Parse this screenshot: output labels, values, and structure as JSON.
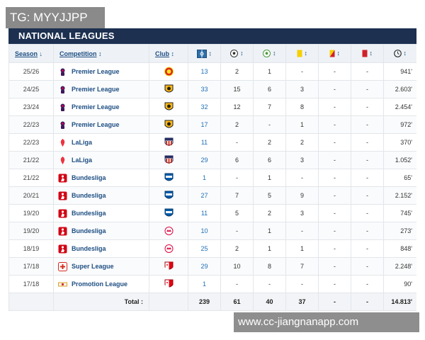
{
  "watermarks": {
    "top": "TG: MYYJJPP",
    "bottom": "www.cc-jiangnanapp.com"
  },
  "panel": {
    "title": "NATIONAL LEAGUES"
  },
  "columns": {
    "season": "Season",
    "season_arrow": "↓",
    "competition": "Competition",
    "competition_arrow": "↕",
    "club": "Club",
    "club_arrow": "↕",
    "sort_arrow": "↕"
  },
  "icons": {
    "apps": "appearances-icon",
    "goals": "goals-icon",
    "assists": "assists-icon",
    "yellow": "yellow-card-icon",
    "yellowred": "yellow-red-card-icon",
    "red": "red-card-icon",
    "minutes": "minutes-clock-icon"
  },
  "colors": {
    "header_bg": "#1d3050",
    "link": "#1d4e83",
    "apps": "#1d6fb8"
  },
  "rows": [
    {
      "season": "25/26",
      "competition": "Premier League",
      "club": "manchester-united-crest",
      "apps": "13",
      "goals": "2",
      "assists": "1",
      "yellow": "-",
      "yellowred": "-",
      "red": "-",
      "minutes": "941'"
    },
    {
      "season": "24/25",
      "competition": "Premier League",
      "club": "wolves-crest",
      "apps": "33",
      "goals": "15",
      "assists": "6",
      "yellow": "3",
      "yellowred": "-",
      "red": "-",
      "minutes": "2.603'"
    },
    {
      "season": "23/24",
      "competition": "Premier League",
      "club": "wolves-crest",
      "apps": "32",
      "goals": "12",
      "assists": "7",
      "yellow": "8",
      "yellowred": "-",
      "red": "-",
      "minutes": "2.454'"
    },
    {
      "season": "22/23",
      "competition": "Premier League",
      "club": "wolves-crest",
      "apps": "17",
      "goals": "2",
      "assists": "-",
      "yellow": "1",
      "yellowred": "-",
      "red": "-",
      "minutes": "972'"
    },
    {
      "season": "22/23",
      "competition": "LaLiga",
      "club": "atletico-madrid-crest",
      "apps": "11",
      "goals": "-",
      "assists": "2",
      "yellow": "2",
      "yellowred": "-",
      "red": "-",
      "minutes": "370'"
    },
    {
      "season": "21/22",
      "competition": "LaLiga",
      "club": "atletico-madrid-crest",
      "apps": "29",
      "goals": "6",
      "assists": "6",
      "yellow": "3",
      "yellowred": "-",
      "red": "-",
      "minutes": "1.052'"
    },
    {
      "season": "21/22",
      "competition": "Bundesliga",
      "club": "hertha-bsc-crest",
      "apps": "1",
      "goals": "-",
      "assists": "1",
      "yellow": "-",
      "yellowred": "-",
      "red": "-",
      "minutes": "65'"
    },
    {
      "season": "20/21",
      "competition": "Bundesliga",
      "club": "hertha-bsc-crest",
      "apps": "27",
      "goals": "7",
      "assists": "5",
      "yellow": "9",
      "yellowred": "-",
      "red": "-",
      "minutes": "2.152'"
    },
    {
      "season": "19/20",
      "competition": "Bundesliga",
      "club": "hertha-bsc-crest",
      "apps": "11",
      "goals": "5",
      "assists": "2",
      "yellow": "3",
      "yellowred": "-",
      "red": "-",
      "minutes": "745'"
    },
    {
      "season": "19/20",
      "competition": "Bundesliga",
      "club": "rb-leipzig-crest",
      "apps": "10",
      "goals": "-",
      "assists": "1",
      "yellow": "-",
      "yellowred": "-",
      "red": "-",
      "minutes": "273'"
    },
    {
      "season": "18/19",
      "competition": "Bundesliga",
      "club": "rb-leipzig-crest",
      "apps": "25",
      "goals": "2",
      "assists": "1",
      "yellow": "1",
      "yellowred": "-",
      "red": "-",
      "minutes": "848'"
    },
    {
      "season": "17/18",
      "competition": "Super League",
      "club": "fc-sion-crest",
      "apps": "29",
      "goals": "10",
      "assists": "8",
      "yellow": "7",
      "yellowred": "-",
      "red": "-",
      "minutes": "2.248'"
    },
    {
      "season": "17/18",
      "competition": "Promotion League",
      "club": "fc-sion-crest",
      "apps": "1",
      "goals": "-",
      "assists": "-",
      "yellow": "-",
      "yellowred": "-",
      "red": "-",
      "minutes": "90'"
    }
  ],
  "totals": {
    "label": "Total :",
    "apps": "239",
    "goals": "61",
    "assists": "40",
    "yellow": "37",
    "yellowred": "-",
    "red": "-",
    "minutes": "14.813'"
  }
}
